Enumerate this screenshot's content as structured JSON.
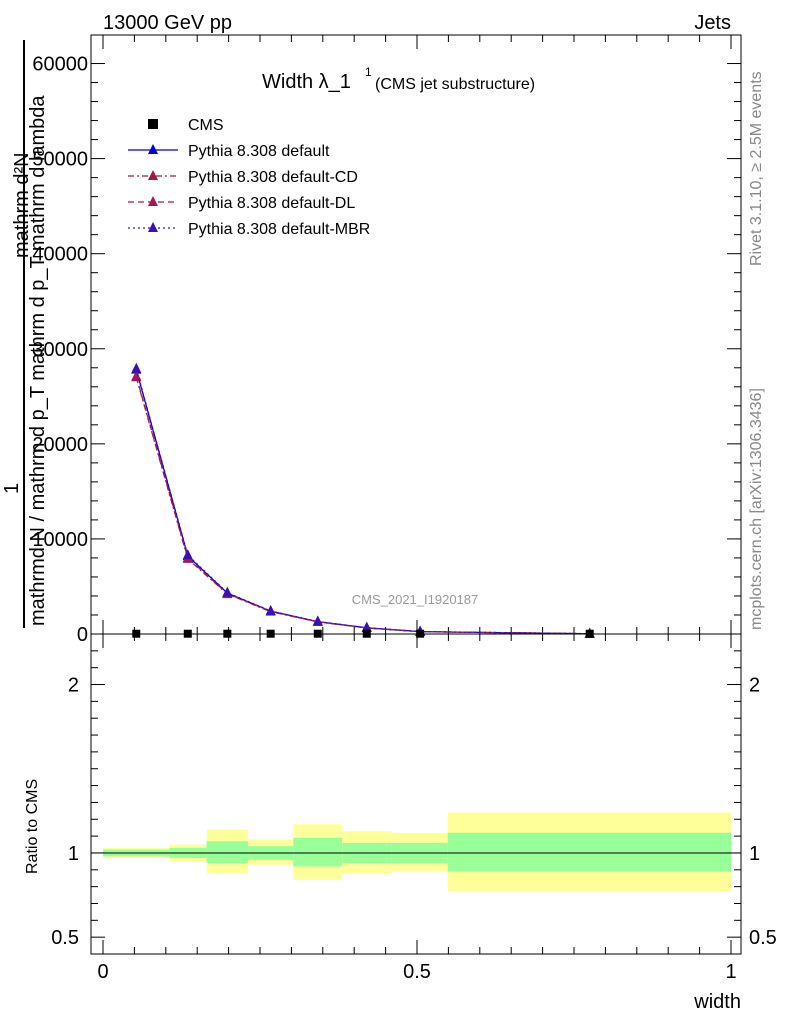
{
  "header": {
    "left": "13000 GeV pp",
    "right": "Jets"
  },
  "side_labels": {
    "rivet": "Rivet 3.1.10, ≥ 2.5M events",
    "mcplots": "mcplots.cern.ch [arXiv:1306.3436]"
  },
  "chart_data": {
    "type": "line",
    "title_main": "Width λ_1",
    "title_sup": "1",
    "title_paren": "(CMS jet substructure)",
    "watermark": "CMS_2021_I1920187",
    "ylabel_top": "mathrm d²N",
    "ylabel_top_parts": [
      "1",
      "mathrm d²N"
    ],
    "ylabel_bottom": "mathrmd N / mathrm d p_T mathrm d p_T mathrm d lambda",
    "ylabel_ratio": "Ratio to CMS",
    "xlabel": "width",
    "xlim": [
      0,
      1
    ],
    "ylim_main": [
      0,
      63000
    ],
    "ylim_ratio": [
      0.4,
      2.3
    ],
    "yticks_main": [
      0,
      10000,
      20000,
      30000,
      40000,
      50000,
      60000
    ],
    "yticks_main_labels": [
      "0",
      "10000",
      "20000",
      "30000",
      "40000",
      "50000",
      "60000"
    ],
    "yticks_ratio": [
      0.5,
      1,
      2
    ],
    "yticks_ratio_labels": [
      "0.5",
      "1",
      "2"
    ],
    "xticks": [
      0,
      0.5,
      1
    ],
    "xticks_labels": [
      "0",
      "0.5",
      "1"
    ],
    "legend": [
      "CMS",
      "Pythia 8.308 default",
      "Pythia 8.308 default-CD",
      "Pythia 8.308 default-DL",
      "Pythia 8.308 default-MBR"
    ],
    "legend_position": "top-left",
    "data": {
      "name": "CMS",
      "x": [
        0.053,
        0.135,
        0.198,
        0.267,
        0.342,
        0.42,
        0.505,
        0.775
      ],
      "y": [
        30,
        30,
        30,
        30,
        30,
        30,
        30,
        30
      ]
    },
    "series": [
      {
        "name": "Pythia 8.308 default",
        "color": "#0000cc",
        "dash": "solid",
        "marker": "triangle",
        "x": [
          0.053,
          0.135,
          0.198,
          0.267,
          0.342,
          0.42,
          0.505,
          0.775
        ],
        "y": [
          27800,
          8200,
          4300,
          2400,
          1300,
          650,
          250,
          30
        ]
      },
      {
        "name": "Pythia 8.308 default-CD",
        "color": "#9e1c3c",
        "dash": "dashdot",
        "marker": "triangle",
        "x": [
          0.053,
          0.135,
          0.198,
          0.267,
          0.342,
          0.42,
          0.505,
          0.775
        ],
        "y": [
          27000,
          7900,
          4200,
          2350,
          1270,
          630,
          240,
          30
        ]
      },
      {
        "name": "Pythia 8.308 default-DL",
        "color": "#a01a58",
        "dash": "dashed",
        "marker": "triangle",
        "x": [
          0.053,
          0.135,
          0.198,
          0.267,
          0.342,
          0.42,
          0.505,
          0.775
        ],
        "y": [
          27100,
          8000,
          4250,
          2380,
          1290,
          640,
          245,
          30
        ]
      },
      {
        "name": "Pythia 8.308 default-MBR",
        "color": "#3a10b8",
        "dash": "dotted",
        "marker": "triangle",
        "x": [
          0.053,
          0.135,
          0.198,
          0.267,
          0.342,
          0.42,
          0.505,
          0.775
        ],
        "y": [
          27900,
          8300,
          4350,
          2420,
          1310,
          660,
          255,
          30
        ]
      }
    ],
    "ratio_bands": {
      "color_inner": "#99ff99",
      "color_outer": "#ffff99",
      "bins": [
        {
          "x0": 0.0,
          "x1": 0.106,
          "in_lo": 0.98,
          "in_hi": 1.02,
          "out_lo": 0.97,
          "out_hi": 1.03
        },
        {
          "x0": 0.106,
          "x1": 0.165,
          "in_lo": 0.97,
          "in_hi": 1.03,
          "out_lo": 0.95,
          "out_hi": 1.05
        },
        {
          "x0": 0.165,
          "x1": 0.231,
          "in_lo": 0.94,
          "in_hi": 1.07,
          "out_lo": 0.88,
          "out_hi": 1.14
        },
        {
          "x0": 0.231,
          "x1": 0.303,
          "in_lo": 0.96,
          "in_hi": 1.04,
          "out_lo": 0.93,
          "out_hi": 1.08
        },
        {
          "x0": 0.303,
          "x1": 0.381,
          "in_lo": 0.92,
          "in_hi": 1.09,
          "out_lo": 0.84,
          "out_hi": 1.17
        },
        {
          "x0": 0.381,
          "x1": 0.46,
          "in_lo": 0.94,
          "in_hi": 1.06,
          "out_lo": 0.88,
          "out_hi": 1.13
        },
        {
          "x0": 0.46,
          "x1": 0.549,
          "in_lo": 0.94,
          "in_hi": 1.06,
          "out_lo": 0.89,
          "out_hi": 1.12
        },
        {
          "x0": 0.549,
          "x1": 1.0,
          "in_lo": 0.89,
          "in_hi": 1.12,
          "out_lo": 0.77,
          "out_hi": 1.24
        }
      ]
    }
  }
}
